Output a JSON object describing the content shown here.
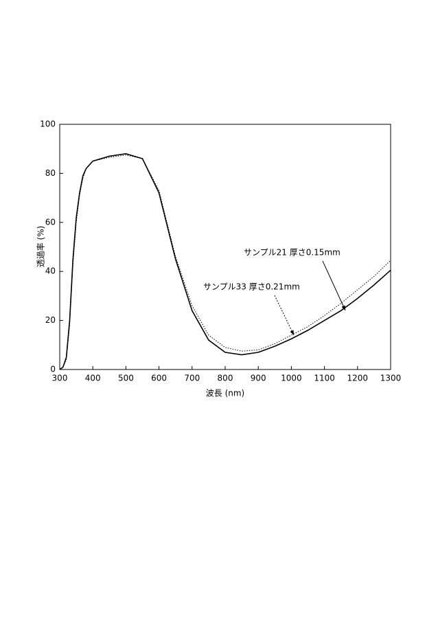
{
  "chart_data": {
    "type": "line",
    "x_label": "波長 (nm)",
    "y_label": "透過率 (%)",
    "x": [
      300,
      310,
      320,
      330,
      340,
      350,
      360,
      370,
      380,
      400,
      450,
      500,
      550,
      600,
      650,
      700,
      750,
      800,
      850,
      900,
      950,
      1000,
      1050,
      1100,
      1150,
      1200,
      1250,
      1300
    ],
    "series": [
      {
        "name": "サンプル21 厚さ0.15mm",
        "color": "#000000",
        "style": "solid",
        "values": [
          0,
          1,
          5,
          20,
          45,
          62,
          72,
          79,
          82,
          85,
          87,
          88,
          86,
          72,
          45,
          24,
          12,
          7,
          6,
          7,
          9.5,
          12.5,
          16,
          20,
          24,
          29,
          34.5,
          40.5
        ]
      },
      {
        "name": "サンプル33 厚さ0.21mm",
        "color": "#000000",
        "style": "dotted",
        "values": [
          0,
          1,
          4,
          18,
          43,
          60,
          71,
          78,
          82,
          85,
          86.5,
          87.5,
          86,
          73,
          46,
          26,
          14,
          9,
          7.5,
          8,
          10.5,
          14,
          17.5,
          22,
          27,
          32.5,
          38,
          44.5
        ]
      }
    ],
    "xlim": [
      300,
      1300
    ],
    "xticks": [
      300,
      400,
      500,
      600,
      700,
      800,
      900,
      1000,
      1100,
      1200,
      1300
    ],
    "ylim": [
      0,
      100
    ],
    "yticks": [
      0,
      20,
      40,
      60,
      80,
      100
    ]
  }
}
